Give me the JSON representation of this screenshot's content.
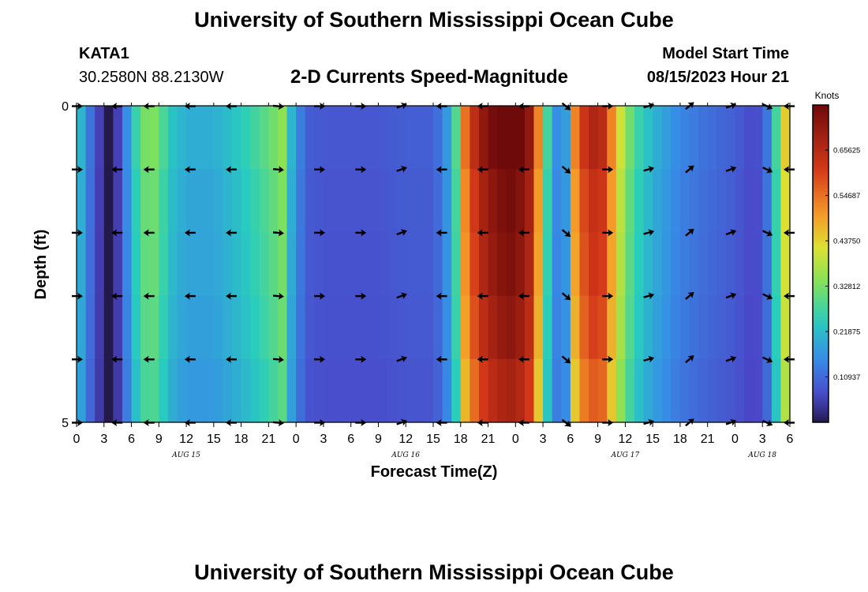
{
  "page": {
    "title_top": "University of Southern Mississippi Ocean Cube",
    "title_bottom": "University of Southern Mississippi Ocean Cube",
    "station": "KATA1",
    "coords": "30.2580N  88.2130W",
    "chart_title": "2-D Currents Speed-Magnitude",
    "model_label": "Model Start Time",
    "model_time": "08/15/2023 Hour 21"
  },
  "chart_data": {
    "type": "heatmap",
    "title": "2-D Currents Speed-Magnitude",
    "xlabel": "Forecast Time(Z)",
    "ylabel": "Depth (ft)",
    "xlim": [
      0,
      78
    ],
    "ylim": [
      0,
      5
    ],
    "y_tick_labels": [
      "0",
      "5"
    ],
    "x_tick_labels": [
      "0",
      "3",
      "6",
      "9",
      "12",
      "15",
      "18",
      "21",
      "0",
      "3",
      "6",
      "9",
      "12",
      "15",
      "18",
      "21",
      "0",
      "3",
      "6",
      "9",
      "12",
      "15",
      "18",
      "21",
      "0",
      "3",
      "6"
    ],
    "day_labels": [
      {
        "label": "AUG 15",
        "hour": 12
      },
      {
        "label": "AUG 16",
        "hour": 36
      },
      {
        "label": "AUG 17",
        "hour": 60
      },
      {
        "label": "AUG 18",
        "hour": 75
      }
    ],
    "colorbar": {
      "label": "Knots",
      "min": 0,
      "max": 0.765,
      "ticks": [
        "0.10937",
        "0.21875",
        "0.32812",
        "0.43750",
        "0.54687",
        "0.65625"
      ]
    },
    "speed_profile": [
      {
        "hour": 0,
        "speed": 0.24
      },
      {
        "hour": 1,
        "speed": 0.16
      },
      {
        "hour": 2,
        "speed": 0.07
      },
      {
        "hour": 3,
        "speed": 0.03
      },
      {
        "hour": 3.5,
        "speed": 0.0
      },
      {
        "hour": 4.5,
        "speed": 0.05
      },
      {
        "hour": 5.5,
        "speed": 0.15
      },
      {
        "hour": 6.5,
        "speed": 0.25
      },
      {
        "hour": 8,
        "speed": 0.34
      },
      {
        "hour": 9,
        "speed": 0.29
      },
      {
        "hour": 10.5,
        "speed": 0.22
      },
      {
        "hour": 12,
        "speed": 0.19
      },
      {
        "hour": 15,
        "speed": 0.19
      },
      {
        "hour": 18,
        "speed": 0.23
      },
      {
        "hour": 21,
        "speed": 0.29
      },
      {
        "hour": 22.5,
        "speed": 0.33
      },
      {
        "hour": 23.5,
        "speed": 0.2
      },
      {
        "hour": 25,
        "speed": 0.09
      },
      {
        "hour": 27,
        "speed": 0.08
      },
      {
        "hour": 33,
        "speed": 0.08
      },
      {
        "hour": 36,
        "speed": 0.09
      },
      {
        "hour": 39,
        "speed": 0.09
      },
      {
        "hour": 40,
        "speed": 0.13
      },
      {
        "hour": 41,
        "speed": 0.2
      },
      {
        "hour": 41.8,
        "speed": 0.32
      },
      {
        "hour": 42.5,
        "speed": 0.52
      },
      {
        "hour": 44,
        "speed": 0.66
      },
      {
        "hour": 46,
        "speed": 0.74
      },
      {
        "hour": 48,
        "speed": 0.76
      },
      {
        "hour": 49.5,
        "speed": 0.68
      },
      {
        "hour": 50.5,
        "speed": 0.5
      },
      {
        "hour": 51.5,
        "speed": 0.26
      },
      {
        "hour": 52.5,
        "speed": 0.15
      },
      {
        "hour": 53.5,
        "speed": 0.17
      },
      {
        "hour": 54.5,
        "speed": 0.5
      },
      {
        "hour": 56,
        "speed": 0.64
      },
      {
        "hour": 57.5,
        "speed": 0.62
      },
      {
        "hour": 58.5,
        "speed": 0.5
      },
      {
        "hour": 60,
        "speed": 0.33
      },
      {
        "hour": 61.5,
        "speed": 0.25
      },
      {
        "hour": 63,
        "speed": 0.2
      },
      {
        "hour": 66,
        "speed": 0.14
      },
      {
        "hour": 69,
        "speed": 0.11
      },
      {
        "hour": 72,
        "speed": 0.09
      },
      {
        "hour": 74,
        "speed": 0.06
      },
      {
        "hour": 75,
        "speed": 0.08
      },
      {
        "hour": 76,
        "speed": 0.16
      },
      {
        "hour": 76.8,
        "speed": 0.32
      },
      {
        "hour": 77.4,
        "speed": 0.42
      },
      {
        "hour": 78,
        "speed": 0.44
      }
    ],
    "depth_rows": [
      {
        "depth": 0.0,
        "factor": 1.05
      },
      {
        "depth": 1.0,
        "factor": 1.0
      },
      {
        "depth": 2.0,
        "factor": 0.98
      },
      {
        "depth": 3.0,
        "factor": 0.95
      },
      {
        "depth": 4.0,
        "factor": 0.9
      }
    ],
    "vector_depths": [
      0,
      1,
      2,
      3,
      4,
      5
    ],
    "vector_directions_deg": [
      {
        "hour": 0,
        "dir": 0
      },
      {
        "hour": 4.5,
        "dir": 180
      },
      {
        "hour": 8,
        "dir": 180
      },
      {
        "hour": 12.5,
        "dir": 180
      },
      {
        "hour": 17,
        "dir": 180
      },
      {
        "hour": 22,
        "dir": 5
      },
      {
        "hour": 26.5,
        "dir": 0
      },
      {
        "hour": 31,
        "dir": 0
      },
      {
        "hour": 35.5,
        "dir": -20
      },
      {
        "hour": 40,
        "dir": 180
      },
      {
        "hour": 44.5,
        "dir": 180
      },
      {
        "hour": 49,
        "dir": 180
      },
      {
        "hour": 53.5,
        "dir": 40
      },
      {
        "hour": 58,
        "dir": 0
      },
      {
        "hour": 62.5,
        "dir": -15
      },
      {
        "hour": 67,
        "dir": -40
      },
      {
        "hour": 71.5,
        "dir": -20
      },
      {
        "hour": 75.5,
        "dir": 25
      },
      {
        "hour": 78,
        "dir": 180
      }
    ]
  }
}
